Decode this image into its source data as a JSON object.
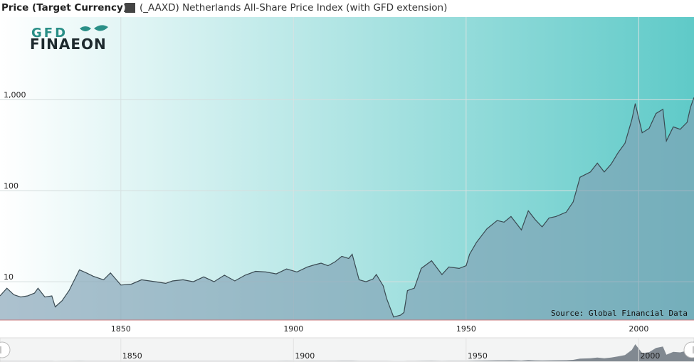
{
  "header": {
    "ylabel": "Price (Target Currency)",
    "legend_label": "(_AAXD) Netherlands All-Share Price Index (with GFD extension)"
  },
  "logo": {
    "line1": "GFD",
    "line2": "FINAEON",
    "color": "#2a8f87"
  },
  "source": "Source: Global Financial Data",
  "colors": {
    "line": "#3a4a52",
    "fill": "#7f9fb3",
    "bg_left": "#ffffff",
    "bg_right": "#5fcac8",
    "navigator": "#5b6670"
  },
  "chart_data": {
    "type": "area",
    "y_scale": "log",
    "ylim": [
      3.8,
      8000
    ],
    "xlim": [
      1815,
      2016
    ],
    "y_ticks": [
      10,
      100,
      1000
    ],
    "y_tick_labels": [
      "10",
      "100",
      "1,000"
    ],
    "x_ticks": [
      "1850",
      "1900",
      "1950",
      "2000"
    ],
    "series": [
      {
        "name": "(_AAXD) Netherlands All-Share Price Index (with GFD extension)",
        "x": [
          1815,
          1817,
          1819,
          1821,
          1823,
          1825,
          1826,
          1828,
          1830,
          1831,
          1833,
          1835,
          1838,
          1840,
          1842,
          1845,
          1847,
          1850,
          1853,
          1856,
          1860,
          1863,
          1865,
          1868,
          1871,
          1874,
          1877,
          1880,
          1883,
          1886,
          1889,
          1892,
          1895,
          1898,
          1901,
          1904,
          1906,
          1908,
          1910,
          1912,
          1914,
          1916,
          1917,
          1919,
          1921,
          1923,
          1924,
          1926,
          1927,
          1929,
          1931,
          1932,
          1933,
          1935,
          1937,
          1940,
          1943,
          1945,
          1948,
          1950,
          1951,
          1953,
          1956,
          1959,
          1961,
          1963,
          1966,
          1968,
          1970,
          1972,
          1974,
          1976,
          1979,
          1981,
          1983,
          1986,
          1988,
          1990,
          1992,
          1994,
          1996,
          1998,
          1999,
          2001,
          2003,
          2005,
          2007,
          2008,
          2010,
          2012,
          2014,
          2015,
          2016
        ],
        "y": [
          7,
          8.5,
          7.2,
          6.8,
          7,
          7.5,
          8.5,
          6.8,
          7,
          5.3,
          6.2,
          8,
          13.5,
          12.5,
          11.5,
          10.5,
          12.5,
          9.2,
          9.4,
          10.5,
          10,
          9.6,
          10.2,
          10.5,
          10,
          11.3,
          10,
          11.8,
          10.2,
          11.8,
          13,
          12.8,
          12.2,
          13.8,
          12.8,
          14.5,
          15.3,
          16,
          15,
          16.5,
          19,
          18,
          20,
          10.5,
          10,
          10.7,
          12,
          9,
          6.5,
          4.1,
          4.3,
          4.6,
          8,
          8.5,
          14,
          17,
          12,
          14.5,
          14,
          15,
          20,
          27,
          38,
          47,
          45,
          52,
          37,
          60,
          48,
          40,
          50,
          52,
          58,
          75,
          140,
          160,
          200,
          160,
          195,
          260,
          330,
          600,
          900,
          430,
          480,
          700,
          780,
          350,
          500,
          470,
          560,
          820,
          1050
        ]
      }
    ]
  },
  "navigator": {
    "x_ticks": [
      "1850",
      "1900",
      "1950",
      "2000"
    ]
  }
}
